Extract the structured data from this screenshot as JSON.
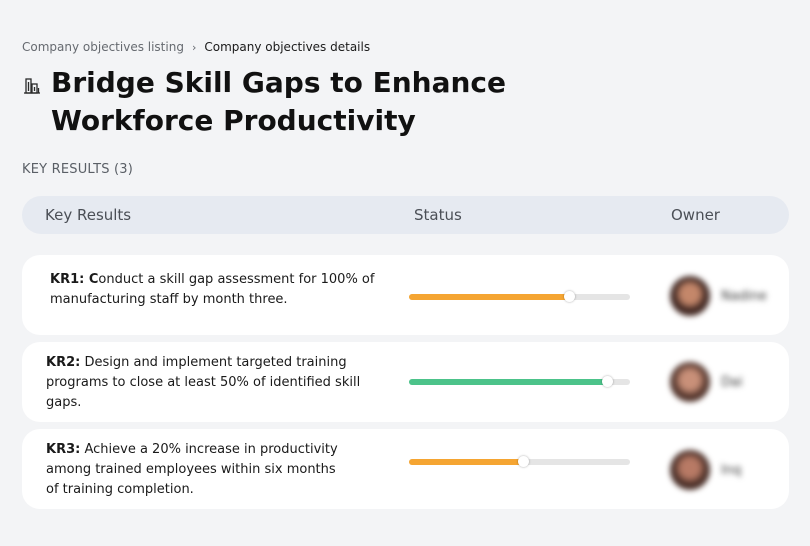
{
  "breadcrumb": {
    "parent": "Company objectives listing",
    "separator": "›",
    "current": "Company objectives details"
  },
  "objective": {
    "icon": "building-icon",
    "title": "Bridge Skill Gaps to Enhance Workforce Productivity"
  },
  "key_results_section": {
    "label": "KEY RESULTS (3)"
  },
  "table": {
    "columns": {
      "key_results": "Key Results",
      "status": "Status",
      "owner": "Owner"
    },
    "rows": [
      {
        "code": "KR1: C",
        "text": "onduct a skill gap assessment for 100% of manufacturing staff by month three.",
        "progress": 0.73,
        "progress_color": "#f5a532",
        "owner": "Nadine"
      },
      {
        "code": "KR2:",
        "text": " Design and implement targeted training programs to close at least 50% of identified skill gaps.",
        "progress": 0.9,
        "progress_color": "#4cc38a",
        "owner": "Dai"
      },
      {
        "code": "KR3:",
        "text": " Achieve a 20% increase in productivity among trained employees within six months of training completion.",
        "progress": 0.52,
        "progress_color": "#f5a532",
        "owner": "Inq"
      }
    ]
  },
  "colors": {
    "background": "#f3f4f6",
    "header_bg": "#e6eaf1",
    "track": "#e5e5e5"
  }
}
